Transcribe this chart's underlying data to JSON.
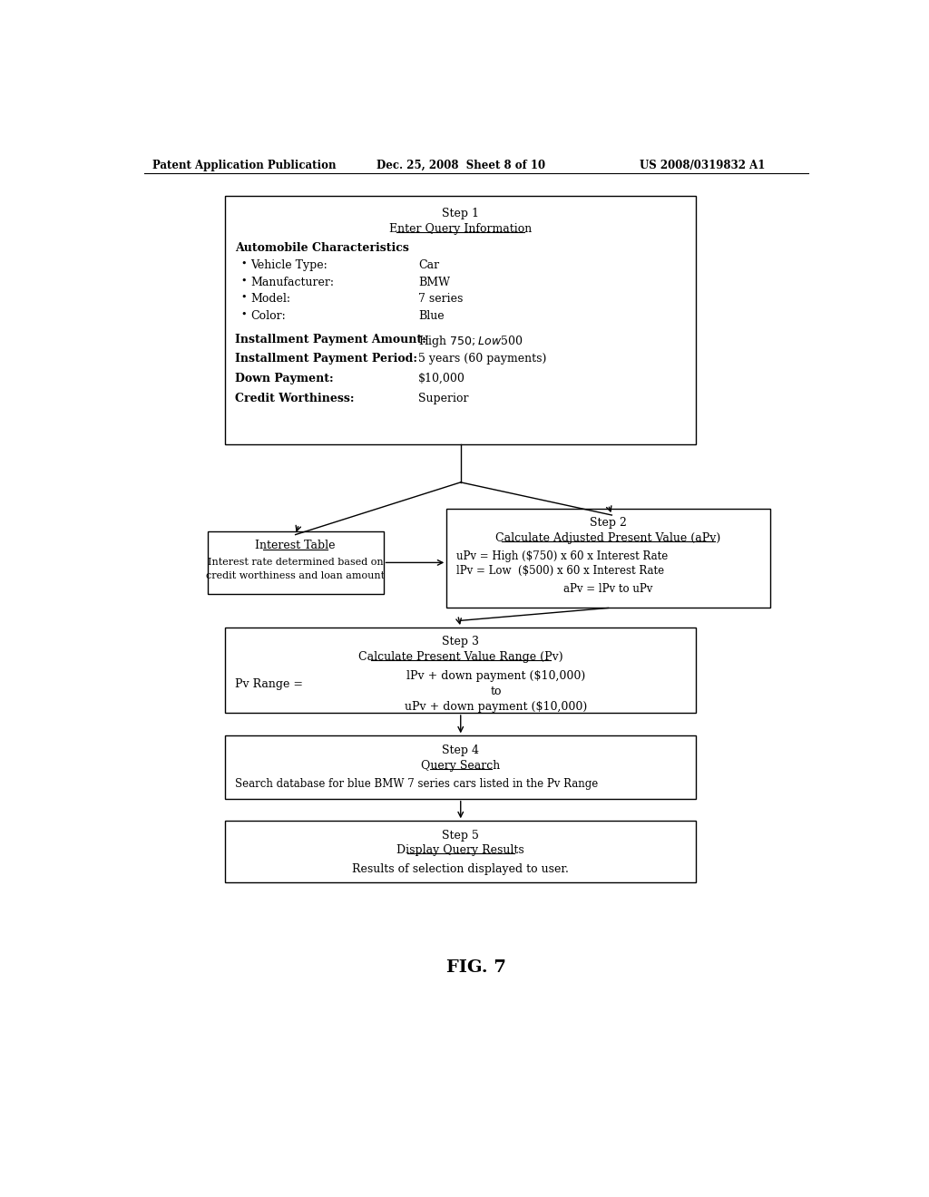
{
  "bg_color": "#ffffff",
  "header_left": "Patent Application Publication",
  "header_center": "Dec. 25, 2008  Sheet 8 of 10",
  "header_right": "US 2008/0319832 A1",
  "footer_label": "FIG. 7",
  "step1_title": "Step 1",
  "step1_subtitle": "Enter Query Information",
  "auto_char": "Automobile Characteristics",
  "bullet_labels": [
    "Vehicle Type:",
    "Manufacturer:",
    "Model:",
    "Color:"
  ],
  "bullet_values": [
    "Car",
    "BMW",
    "7 series",
    "Blue"
  ],
  "inst_amount_label": "Installment Payment Amount:",
  "inst_amount_value": "High $750; Low $500",
  "inst_period_label": "Installment Payment Period:",
  "inst_period_value": "5 years (60 payments)",
  "down_label": "Down Payment:",
  "down_value": "$10,000",
  "credit_label": "Credit Worthiness:",
  "credit_value": "Superior",
  "interest_title": "Interest Table",
  "interest_line1": "Interest rate determined based on",
  "interest_line2": "credit worthiness and loan amount",
  "step2_title": "Step 2",
  "step2_subtitle": "Calculate Adjusted Present Value (aPv)",
  "step2_line1": "uPv = High ($750) x 60 x Interest Rate",
  "step2_line2": "lPv = Low  ($500) x 60 x Interest Rate",
  "step2_line3": "aPv = lPv to uPv",
  "step3_title": "Step 3",
  "step3_subtitle": "Calculate Present Value Range (Pv)",
  "step3_pv_label": "Pv Range =",
  "step3_line1": "lPv + down payment ($10,000)",
  "step3_line2": "to",
  "step3_line3": "uPv + down payment ($10,000)",
  "step4_title": "Step 4",
  "step4_subtitle": "Query Search",
  "step4_line": "Search database for blue BMW 7 series cars listed in the Pv Range",
  "step5_title": "Step 5",
  "step5_subtitle": "Display Query Results",
  "step5_line": "Results of selection displayed to user."
}
